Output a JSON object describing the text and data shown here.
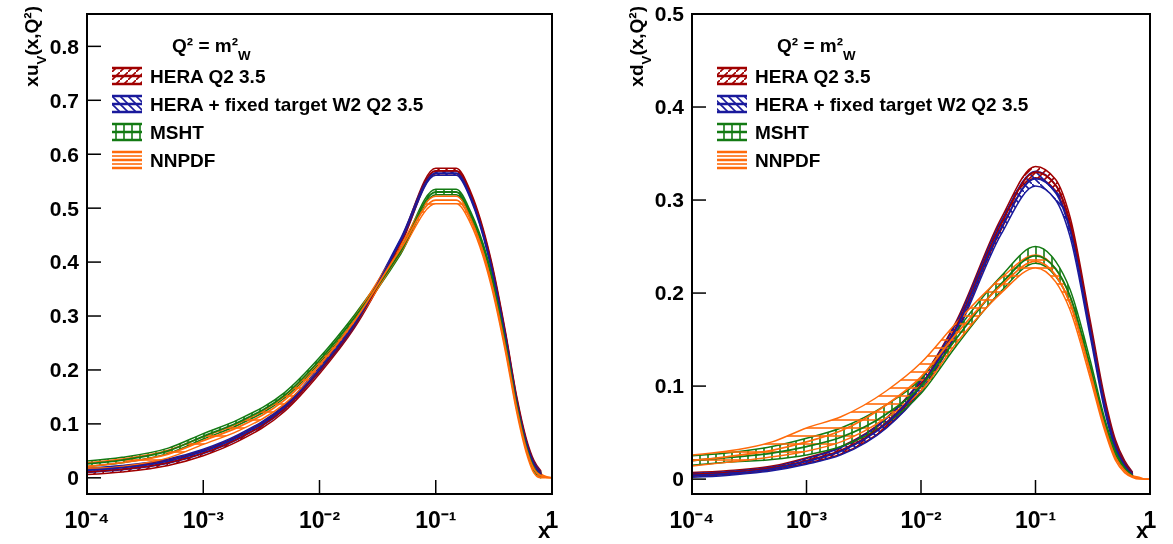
{
  "chart_data": [
    {
      "type": "line",
      "ylabel": "xu$_{V}$(x,Q²)",
      "xlabel": "x",
      "legend_title": "Q² = m²$_{W}$",
      "legend": "top left",
      "log": "x",
      "xlim": [
        0.0001,
        1
      ],
      "xticks": [
        {
          "value": 0.0001,
          "label": "10⁻⁴"
        },
        {
          "value": 0.001,
          "label": "10⁻³"
        },
        {
          "value": 0.01,
          "label": "10⁻²"
        },
        {
          "value": 0.1,
          "label": "10⁻¹"
        },
        1
      ],
      "ylim": [
        -0.03,
        0.86
      ],
      "yticks": [
        0,
        0.1,
        0.2,
        0.3,
        0.4,
        0.5,
        0.6,
        0.7,
        0.8
      ],
      "x": [
        0.0001,
        0.0002,
        0.0005,
        0.001,
        0.002,
        0.005,
        0.01,
        0.02,
        0.05,
        0.1,
        0.15,
        0.2,
        0.3,
        0.4,
        0.5,
        0.6,
        0.7,
        0.8,
        0.9,
        1
      ],
      "series": [
        {
          "name": "HERA Q2 3.5",
          "color": "#a00000",
          "values": [
            0.011,
            0.016,
            0.028,
            0.046,
            0.073,
            0.128,
            0.198,
            0.283,
            0.437,
            0.569,
            0.569,
            0.525,
            0.398,
            0.263,
            0.143,
            0.068,
            0.027,
            0.008,
            null,
            null
          ],
          "lower": [
            0.006,
            0.011,
            0.023,
            0.041,
            0.068,
            0.123,
            0.193,
            0.278,
            0.432,
            0.564,
            0.564,
            0.52,
            0.393,
            0.258,
            0.138,
            0.063,
            0.022,
            0.003,
            null,
            null
          ],
          "upper": [
            0.016,
            0.021,
            0.033,
            0.051,
            0.078,
            0.133,
            0.203,
            0.288,
            0.442,
            0.574,
            0.574,
            0.53,
            0.403,
            0.268,
            0.148,
            0.073,
            0.032,
            0.013,
            null,
            null
          ]
        },
        {
          "name": "HERA + fixed target W2 Q2 3.5",
          "color": "#1a1a9c",
          "values": [
            0.014,
            0.019,
            0.031,
            0.049,
            0.076,
            0.131,
            0.201,
            0.285,
            0.44,
            0.565,
            0.565,
            0.52,
            0.393,
            0.258,
            0.138,
            0.065,
            0.025,
            0.007,
            null,
            null
          ],
          "lower": [
            0.01,
            0.015,
            0.027,
            0.045,
            0.072,
            0.127,
            0.197,
            0.281,
            0.436,
            0.561,
            0.561,
            0.516,
            0.389,
            0.254,
            0.134,
            0.061,
            0.021,
            0.003,
            null,
            null
          ],
          "upper": [
            0.018,
            0.023,
            0.035,
            0.053,
            0.08,
            0.135,
            0.205,
            0.289,
            0.444,
            0.569,
            0.569,
            0.524,
            0.397,
            0.262,
            0.142,
            0.069,
            0.029,
            0.011,
            null,
            null
          ]
        },
        {
          "name": "MSHT",
          "color": "#137a13",
          "values": [
            0.026,
            0.033,
            0.05,
            0.077,
            0.103,
            0.153,
            0.218,
            0.297,
            0.42,
            0.53,
            0.53,
            0.488,
            0.376,
            0.247,
            0.132,
            0.058,
            0.018,
            0.004,
            null,
            null
          ],
          "lower": [
            0.021,
            0.028,
            0.045,
            0.072,
            0.098,
            0.148,
            0.213,
            0.292,
            0.415,
            0.525,
            0.525,
            0.483,
            0.371,
            0.242,
            0.127,
            0.053,
            0.013,
            0,
            null,
            null
          ],
          "upper": [
            0.031,
            0.038,
            0.055,
            0.082,
            0.108,
            0.158,
            0.223,
            0.302,
            0.425,
            0.535,
            0.535,
            0.493,
            0.381,
            0.252,
            0.137,
            0.063,
            0.023,
            0.009,
            null,
            null
          ]
        },
        {
          "name": "NNPDF",
          "color": "#ff6a0a",
          "values": [
            0.021,
            0.028,
            0.044,
            0.069,
            0.094,
            0.144,
            0.209,
            0.291,
            0.425,
            0.515,
            0.515,
            0.478,
            0.363,
            0.238,
            0.126,
            0.054,
            0.016,
            0.004,
            0.001,
            0
          ],
          "lower": [
            0.014,
            0.021,
            0.037,
            0.062,
            0.087,
            0.137,
            0.202,
            0.284,
            0.418,
            0.508,
            0.508,
            0.471,
            0.356,
            0.231,
            0.119,
            0.047,
            0.009,
            0,
            0,
            0
          ],
          "upper": [
            0.028,
            0.035,
            0.051,
            0.076,
            0.101,
            0.151,
            0.216,
            0.298,
            0.432,
            0.522,
            0.522,
            0.485,
            0.37,
            0.245,
            0.133,
            0.061,
            0.023,
            0.008,
            0.002,
            0
          ]
        }
      ]
    },
    {
      "type": "line",
      "ylabel": "xd$_{V}$(x,Q²)",
      "xlabel": "x",
      "legend_title": "Q² = m²$_{W}$",
      "legend": "top left",
      "log": "x",
      "xlim": [
        0.0001,
        1
      ],
      "xticks": [
        {
          "value": 0.0001,
          "label": "10⁻⁴"
        },
        {
          "value": 0.001,
          "label": "10⁻³"
        },
        {
          "value": 0.01,
          "label": "10⁻²"
        },
        {
          "value": 0.1,
          "label": "10⁻¹"
        },
        1
      ],
      "ylim": [
        -0.016,
        0.5
      ],
      "yticks": [
        0,
        0.1,
        0.2,
        0.3,
        0.4,
        0.5
      ],
      "x": [
        0.0001,
        0.0002,
        0.0005,
        0.001,
        0.002,
        0.005,
        0.01,
        0.02,
        0.05,
        0.1,
        0.15,
        0.2,
        0.3,
        0.4,
        0.5,
        0.6,
        0.7,
        0.8,
        0.9,
        1
      ],
      "series": [
        {
          "name": "HERA Q2 3.5",
          "color": "#a00000",
          "values": [
            0.005,
            0.007,
            0.012,
            0.02,
            0.031,
            0.061,
            0.101,
            0.162,
            0.274,
            0.33,
            0.316,
            0.276,
            0.165,
            0.084,
            0.038,
            0.017,
            0.006,
            null,
            null,
            null
          ],
          "lower": [
            0.003,
            0.005,
            0.01,
            0.017,
            0.027,
            0.056,
            0.095,
            0.156,
            0.268,
            0.324,
            0.31,
            0.27,
            0.159,
            0.079,
            0.034,
            0.014,
            0.004,
            null,
            null,
            null
          ],
          "upper": [
            0.007,
            0.009,
            0.014,
            0.023,
            0.035,
            0.066,
            0.107,
            0.168,
            0.28,
            0.336,
            0.322,
            0.282,
            0.171,
            0.089,
            0.042,
            0.02,
            0.008,
            null,
            null,
            null
          ]
        },
        {
          "name": "HERA + fixed target W2 Q2 3.5",
          "color": "#1a1a9c",
          "values": [
            0.004,
            0.006,
            0.011,
            0.019,
            0.03,
            0.06,
            0.1,
            0.16,
            0.27,
            0.323,
            0.308,
            0.268,
            0.16,
            0.08,
            0.035,
            0.015,
            0.005,
            null,
            null,
            null
          ],
          "lower": [
            0.002,
            0.004,
            0.009,
            0.016,
            0.026,
            0.055,
            0.094,
            0.154,
            0.263,
            0.315,
            0.3,
            0.261,
            0.154,
            0.075,
            0.031,
            0.012,
            0.003,
            null,
            null,
            null
          ],
          "upper": [
            0.006,
            0.008,
            0.013,
            0.022,
            0.034,
            0.065,
            0.106,
            0.166,
            0.277,
            0.331,
            0.316,
            0.275,
            0.166,
            0.085,
            0.039,
            0.018,
            0.007,
            null,
            null,
            null
          ]
        },
        {
          "name": "MSHT",
          "color": "#137a13",
          "values": [
            0.02,
            0.023,
            0.028,
            0.035,
            0.045,
            0.07,
            0.1,
            0.15,
            0.21,
            0.24,
            0.226,
            0.197,
            0.122,
            0.062,
            0.027,
            0.012,
            0.004,
            null,
            null,
            null
          ],
          "lower": [
            0.015,
            0.018,
            0.021,
            0.026,
            0.035,
            0.06,
            0.092,
            0.142,
            0.202,
            0.232,
            0.218,
            0.19,
            0.116,
            0.058,
            0.024,
            0.01,
            0.003,
            null,
            null,
            null
          ],
          "upper": [
            0.025,
            0.028,
            0.035,
            0.044,
            0.055,
            0.08,
            0.108,
            0.158,
            0.218,
            0.25,
            0.234,
            0.204,
            0.128,
            0.066,
            0.03,
            0.014,
            0.005,
            null,
            null,
            null
          ]
        },
        {
          "name": "NNPDF",
          "color": "#ff6a0a",
          "values": [
            0.02,
            0.024,
            0.031,
            0.04,
            0.052,
            0.08,
            0.11,
            0.155,
            0.208,
            0.234,
            0.219,
            0.189,
            0.115,
            0.057,
            0.023,
            0.009,
            0.003,
            0.001,
            0,
            0
          ],
          "lower": [
            0.014,
            0.018,
            0.024,
            0.03,
            0.04,
            0.066,
            0.095,
            0.145,
            0.2,
            0.227,
            0.212,
            0.182,
            0.109,
            0.053,
            0.02,
            0.007,
            0.002,
            0,
            0,
            0
          ],
          "upper": [
            0.026,
            0.03,
            0.04,
            0.055,
            0.067,
            0.095,
            0.125,
            0.167,
            0.216,
            0.241,
            0.226,
            0.196,
            0.121,
            0.061,
            0.026,
            0.011,
            0.004,
            0.002,
            0,
            0
          ]
        }
      ]
    }
  ]
}
